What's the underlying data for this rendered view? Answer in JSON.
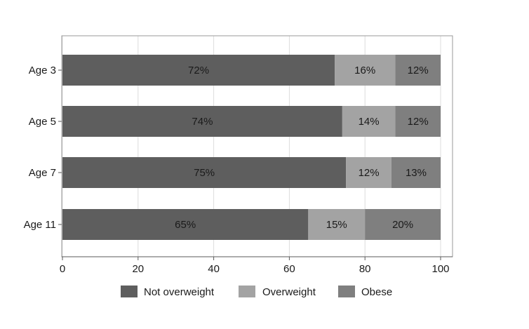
{
  "chart_data": {
    "type": "bar",
    "orientation": "horizontal",
    "stacked": true,
    "categories": [
      "Age 3",
      "Age 5",
      "Age 7",
      "Age 11"
    ],
    "series": [
      {
        "name": "Not overweight",
        "color": "#5e5e5e",
        "values": [
          72,
          74,
          75,
          65
        ],
        "labels": [
          "72%",
          "74%",
          "75%",
          "65%"
        ]
      },
      {
        "name": "Overweight",
        "color": "#a3a3a3",
        "values": [
          16,
          14,
          12,
          15
        ],
        "labels": [
          "16%",
          "14%",
          "12%",
          "15%"
        ]
      },
      {
        "name": "Obese",
        "color": "#7f7f7f",
        "values": [
          12,
          12,
          13,
          20
        ],
        "labels": [
          "12%",
          "12%",
          "13%",
          "20%"
        ]
      }
    ],
    "xlim": [
      0,
      100
    ],
    "xticks": [
      0,
      20,
      40,
      60,
      80,
      100
    ],
    "xtick_labels": [
      "0",
      "20",
      "40",
      "60",
      "80",
      "100"
    ],
    "grid": "vertical",
    "legend_position": "bottom"
  }
}
